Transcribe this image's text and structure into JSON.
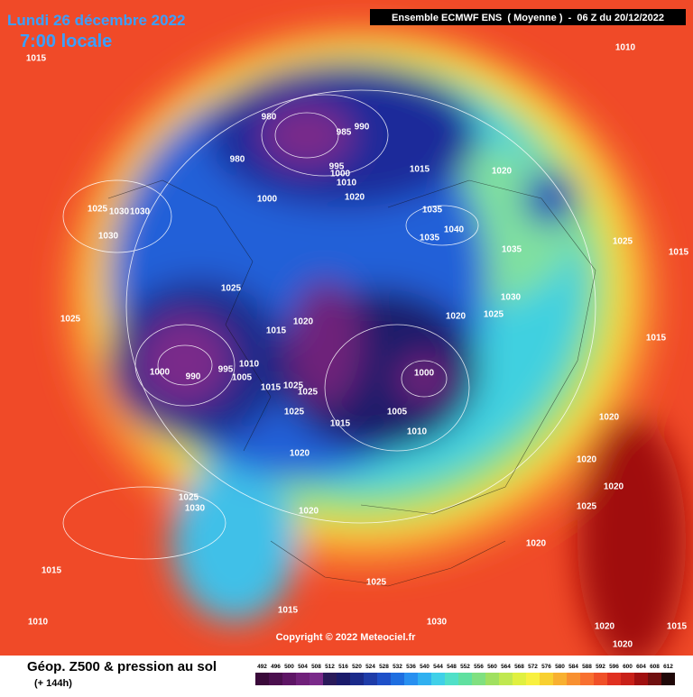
{
  "header": {
    "date": "Lundi 26 décembre 2022",
    "time": "7:00 locale",
    "model": "Ensemble ECMWF ENS  ( Moyenne )  -  06 Z du 20/12/2022"
  },
  "copyright": "Copyright © 2022 Meteociel.fr",
  "footer": {
    "title": "Géop. Z500 & pression au sol",
    "lead": "(+ 144h)"
  },
  "scale": {
    "levels": [
      492,
      496,
      500,
      504,
      508,
      512,
      516,
      520,
      524,
      528,
      532,
      536,
      540,
      544,
      548,
      552,
      556,
      560,
      564,
      568,
      572,
      576,
      580,
      584,
      588,
      592,
      596,
      600,
      604,
      608,
      612
    ],
    "colors": [
      "#3a0a3a",
      "#4b0f4e",
      "#5e1565",
      "#70207a",
      "#7a2a8a",
      "#2a1a5a",
      "#1a1a6a",
      "#1a2a8a",
      "#1e3ca8",
      "#1e50c8",
      "#1e6ee0",
      "#2890f0",
      "#30b0f0",
      "#40d0e8",
      "#50e0c8",
      "#60e0a0",
      "#80e080",
      "#a0e060",
      "#c0e850",
      "#e0f040",
      "#f8f040",
      "#f8d030",
      "#f8b030",
      "#f89030",
      "#f87030",
      "#f05028",
      "#e03020",
      "#c82018",
      "#a01010",
      "#701010",
      "#200808"
    ]
  },
  "isobar_labels": [
    1015,
    1010,
    980,
    985,
    990,
    980,
    995,
    1000,
    1010,
    1015,
    1020,
    1020,
    1000,
    1025,
    1030,
    1030,
    1030,
    1035,
    1035,
    1040,
    1035,
    1025,
    1015,
    1025,
    1030,
    1025,
    1020,
    1025,
    1020,
    1015,
    1000,
    990,
    995,
    1010,
    1005,
    1015,
    1025,
    1025,
    1000,
    1005,
    1010,
    1025,
    1015,
    1020,
    1020,
    1025,
    1030,
    1015,
    1010,
    1025,
    1015,
    1030,
    1020,
    1020,
    1020,
    1025,
    1020,
    1020,
    1015,
    1020,
    1015
  ]
}
